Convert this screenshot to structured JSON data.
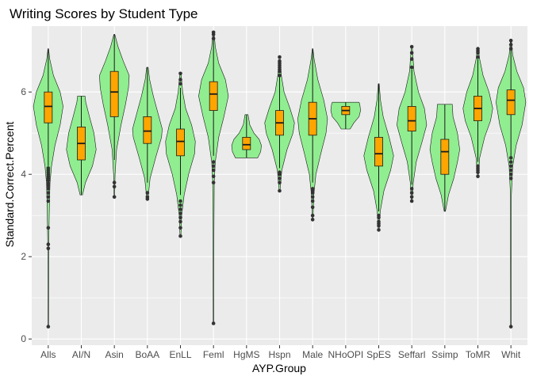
{
  "chart_data": {
    "type": "violin",
    "title": "Writing Scores by Student Type",
    "xlabel": "AYP.Group",
    "ylabel": "Standard.Correct.Percent",
    "ylim": [
      -0.15,
      7.6
    ],
    "yticks": [
      0,
      2,
      4,
      6
    ],
    "grid": true,
    "colors": {
      "panel": "#ebebeb",
      "grid": "#ffffff",
      "violin": "#90ee90",
      "box": "#ffa500",
      "outline": "#1a1a1a",
      "outlier": "#333333"
    },
    "categories": [
      "Alls",
      "AI/N",
      "Asin",
      "BoAA",
      "EnLL",
      "Feml",
      "HgMS",
      "Hspn",
      "Male",
      "NHoOPI",
      "SpES",
      "Seffarl",
      "Ssimp",
      "ToMR",
      "Whit"
    ],
    "groups": [
      {
        "category": "Alls",
        "min": 0.3,
        "max": 7.05,
        "q1": 5.25,
        "median": 5.65,
        "q3": 6.0,
        "whisker_low": 4.2,
        "whisker_high": 7.05,
        "density": [
          [
            0.3,
            0.02
          ],
          [
            2.3,
            0.03
          ],
          [
            3.3,
            0.08
          ],
          [
            3.8,
            0.12
          ],
          [
            4.2,
            0.22
          ],
          [
            4.7,
            0.45
          ],
          [
            5.2,
            0.8
          ],
          [
            5.65,
            1.0
          ],
          [
            6.0,
            0.8
          ],
          [
            6.4,
            0.35
          ],
          [
            6.8,
            0.1
          ],
          [
            7.05,
            0.02
          ]
        ],
        "outliers": [
          0.3,
          2.2,
          2.3,
          2.7,
          3.35,
          3.45,
          3.55,
          3.65,
          3.72,
          3.78,
          3.85,
          3.9,
          3.95,
          4.0,
          4.05,
          4.1,
          4.15
        ]
      },
      {
        "category": "AI/N",
        "min": 3.5,
        "max": 5.9,
        "q1": 4.35,
        "median": 4.75,
        "q3": 5.15,
        "whisker_low": 3.5,
        "whisker_high": 5.9,
        "density": [
          [
            3.5,
            0.08
          ],
          [
            3.8,
            0.28
          ],
          [
            4.2,
            0.75
          ],
          [
            4.6,
            1.0
          ],
          [
            5.0,
            0.85
          ],
          [
            5.4,
            0.55
          ],
          [
            5.75,
            0.3
          ],
          [
            5.9,
            0.25
          ]
        ],
        "outliers": []
      },
      {
        "category": "Asin",
        "min": 3.45,
        "max": 7.4,
        "q1": 5.4,
        "median": 6.0,
        "q3": 6.5,
        "whisker_low": 4.35,
        "whisker_high": 7.4,
        "density": [
          [
            3.45,
            0.02
          ],
          [
            4.0,
            0.05
          ],
          [
            4.6,
            0.15
          ],
          [
            5.2,
            0.45
          ],
          [
            5.7,
            0.75
          ],
          [
            6.1,
            0.95
          ],
          [
            6.4,
            1.0
          ],
          [
            6.75,
            0.6
          ],
          [
            7.1,
            0.25
          ],
          [
            7.4,
            0.03
          ]
        ],
        "outliers": [
          3.45,
          3.7,
          3.8
        ]
      },
      {
        "category": "BoAA",
        "min": 3.4,
        "max": 6.6,
        "q1": 4.75,
        "median": 5.05,
        "q3": 5.4,
        "whisker_low": 3.8,
        "whisker_high": 6.6,
        "density": [
          [
            3.4,
            0.04
          ],
          [
            3.9,
            0.18
          ],
          [
            4.4,
            0.55
          ],
          [
            4.9,
            0.95
          ],
          [
            5.1,
            1.0
          ],
          [
            5.5,
            0.7
          ],
          [
            5.9,
            0.4
          ],
          [
            6.3,
            0.15
          ],
          [
            6.6,
            0.05
          ]
        ],
        "outliers": [
          3.4,
          3.45,
          3.55
        ]
      },
      {
        "category": "EnLL",
        "min": 2.5,
        "max": 6.45,
        "q1": 4.45,
        "median": 4.8,
        "q3": 5.1,
        "whisker_low": 3.5,
        "whisker_high": 6.1,
        "density": [
          [
            2.5,
            0.03
          ],
          [
            3.0,
            0.08
          ],
          [
            3.5,
            0.25
          ],
          [
            4.0,
            0.55
          ],
          [
            4.5,
            0.95
          ],
          [
            4.8,
            1.0
          ],
          [
            5.2,
            0.75
          ],
          [
            5.6,
            0.35
          ],
          [
            6.0,
            0.15
          ],
          [
            6.45,
            0.04
          ]
        ],
        "outliers": [
          2.5,
          2.7,
          2.85,
          2.95,
          3.05,
          3.15,
          3.25,
          3.35,
          6.2,
          6.3,
          6.45
        ]
      },
      {
        "category": "Feml",
        "min": 0.38,
        "max": 7.45,
        "q1": 5.55,
        "median": 5.95,
        "q3": 6.25,
        "whisker_low": 4.45,
        "whisker_high": 7.45,
        "density": [
          [
            0.38,
            0.02
          ],
          [
            2.5,
            0.03
          ],
          [
            3.8,
            0.05
          ],
          [
            4.3,
            0.12
          ],
          [
            4.9,
            0.35
          ],
          [
            5.4,
            0.7
          ],
          [
            5.9,
            1.0
          ],
          [
            6.3,
            0.8
          ],
          [
            6.7,
            0.35
          ],
          [
            7.1,
            0.12
          ],
          [
            7.45,
            0.04
          ]
        ],
        "outliers": [
          0.38,
          3.8,
          3.95,
          4.1,
          4.2,
          4.3,
          7.3,
          7.4,
          7.45
        ]
      },
      {
        "category": "HgMS",
        "min": 4.4,
        "max": 5.45,
        "q1": 4.6,
        "median": 4.72,
        "q3": 4.9,
        "whisker_low": 4.4,
        "whisker_high": 5.45,
        "density": [
          [
            4.4,
            0.75
          ],
          [
            4.55,
            0.95
          ],
          [
            4.7,
            1.0
          ],
          [
            4.85,
            0.85
          ],
          [
            5.0,
            0.5
          ],
          [
            5.2,
            0.22
          ],
          [
            5.45,
            0.1
          ]
        ],
        "outliers": []
      },
      {
        "category": "Hspn",
        "min": 3.6,
        "max": 6.85,
        "q1": 4.95,
        "median": 5.25,
        "q3": 5.55,
        "whisker_low": 4.15,
        "whisker_high": 6.4,
        "density": [
          [
            3.6,
            0.03
          ],
          [
            4.1,
            0.15
          ],
          [
            4.6,
            0.5
          ],
          [
            5.0,
            0.9
          ],
          [
            5.25,
            1.0
          ],
          [
            5.6,
            0.7
          ],
          [
            6.0,
            0.3
          ],
          [
            6.4,
            0.12
          ],
          [
            6.85,
            0.03
          ]
        ],
        "outliers": [
          3.6,
          3.8,
          3.9,
          4.0,
          4.05,
          6.4,
          6.5,
          6.55,
          6.6,
          6.65,
          6.7,
          6.75,
          6.85
        ]
      },
      {
        "category": "Male",
        "min": 2.9,
        "max": 7.05,
        "q1": 4.95,
        "median": 5.35,
        "q3": 5.75,
        "whisker_low": 3.8,
        "whisker_high": 7.05,
        "density": [
          [
            2.9,
            0.02
          ],
          [
            3.5,
            0.08
          ],
          [
            4.0,
            0.22
          ],
          [
            4.5,
            0.55
          ],
          [
            5.0,
            0.9
          ],
          [
            5.35,
            1.0
          ],
          [
            5.8,
            0.75
          ],
          [
            6.3,
            0.35
          ],
          [
            6.8,
            0.1
          ],
          [
            7.05,
            0.02
          ]
        ],
        "outliers": [
          2.9,
          3.0,
          3.2,
          3.35,
          3.45,
          3.55,
          3.6,
          3.65
        ]
      },
      {
        "category": "NHoOPI",
        "min": 5.1,
        "max": 5.75,
        "q1": 5.45,
        "median": 5.55,
        "q3": 5.65,
        "whisker_low": 5.1,
        "whisker_high": 5.75,
        "density": [
          [
            5.1,
            0.3
          ],
          [
            5.25,
            0.55
          ],
          [
            5.4,
            0.9
          ],
          [
            5.55,
            1.0
          ],
          [
            5.7,
            0.95
          ],
          [
            5.75,
            0.9
          ]
        ],
        "outliers": []
      },
      {
        "category": "SpES",
        "min": 2.65,
        "max": 6.2,
        "q1": 4.2,
        "median": 4.5,
        "q3": 4.9,
        "whisker_low": 3.1,
        "whisker_high": 6.2,
        "density": [
          [
            2.65,
            0.03
          ],
          [
            3.1,
            0.1
          ],
          [
            3.6,
            0.35
          ],
          [
            4.1,
            0.8
          ],
          [
            4.45,
            1.0
          ],
          [
            4.9,
            0.7
          ],
          [
            5.4,
            0.3
          ],
          [
            5.8,
            0.12
          ],
          [
            6.2,
            0.03
          ]
        ],
        "outliers": [
          2.65,
          2.75,
          2.8,
          2.85,
          2.95,
          3.0
        ]
      },
      {
        "category": "Seffarl",
        "min": 3.35,
        "max": 7.1,
        "q1": 5.05,
        "median": 5.3,
        "q3": 5.65,
        "whisker_low": 3.75,
        "whisker_high": 6.55,
        "density": [
          [
            3.35,
            0.03
          ],
          [
            3.8,
            0.1
          ],
          [
            4.3,
            0.3
          ],
          [
            4.8,
            0.7
          ],
          [
            5.2,
            1.0
          ],
          [
            5.6,
            0.85
          ],
          [
            6.0,
            0.45
          ],
          [
            6.5,
            0.15
          ],
          [
            7.1,
            0.03
          ]
        ],
        "outliers": [
          3.35,
          3.45,
          3.55,
          3.65,
          6.6,
          6.8,
          6.95,
          7.1
        ]
      },
      {
        "category": "Ssimp",
        "min": 3.1,
        "max": 5.7,
        "q1": 4.0,
        "median": 4.55,
        "q3": 4.85,
        "whisker_low": 3.1,
        "whisker_high": 5.7,
        "density": [
          [
            3.1,
            0.04
          ],
          [
            3.5,
            0.25
          ],
          [
            3.9,
            0.6
          ],
          [
            4.3,
            0.85
          ],
          [
            4.6,
            1.0
          ],
          [
            5.0,
            0.85
          ],
          [
            5.4,
            0.55
          ],
          [
            5.7,
            0.5
          ]
        ],
        "outliers": []
      },
      {
        "category": "ToMR",
        "min": 3.95,
        "max": 7.05,
        "q1": 5.3,
        "median": 5.6,
        "q3": 5.9,
        "whisker_low": 4.3,
        "whisker_high": 6.8,
        "density": [
          [
            3.95,
            0.03
          ],
          [
            4.4,
            0.12
          ],
          [
            4.9,
            0.45
          ],
          [
            5.3,
            0.85
          ],
          [
            5.6,
            1.0
          ],
          [
            6.0,
            0.75
          ],
          [
            6.4,
            0.35
          ],
          [
            6.8,
            0.12
          ],
          [
            7.05,
            0.03
          ]
        ],
        "outliers": [
          3.95,
          4.05,
          4.1,
          4.15,
          4.2,
          6.85,
          6.95,
          7.0,
          7.05
        ]
      },
      {
        "category": "Whit",
        "min": 0.3,
        "max": 7.25,
        "q1": 5.45,
        "median": 5.8,
        "q3": 6.05,
        "whisker_low": 4.4,
        "whisker_high": 7.25,
        "density": [
          [
            0.3,
            0.02
          ],
          [
            3.5,
            0.03
          ],
          [
            4.2,
            0.12
          ],
          [
            4.7,
            0.35
          ],
          [
            5.2,
            0.75
          ],
          [
            5.75,
            1.0
          ],
          [
            6.1,
            0.85
          ],
          [
            6.5,
            0.4
          ],
          [
            6.9,
            0.12
          ],
          [
            7.25,
            0.03
          ]
        ],
        "outliers": [
          0.3,
          3.9,
          4.0,
          4.1,
          4.2,
          4.3,
          4.4,
          7.05,
          7.15,
          7.25
        ]
      }
    ]
  }
}
